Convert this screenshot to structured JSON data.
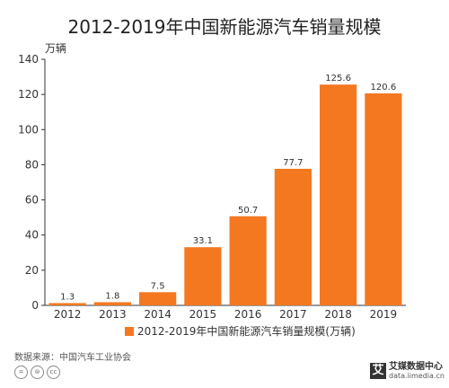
{
  "chart_data": {
    "type": "bar",
    "title": "2012-2019年中国新能源汽车销量规模",
    "ylabel": "万辆",
    "xlabel": "",
    "categories": [
      "2012",
      "2013",
      "2014",
      "2015",
      "2016",
      "2017",
      "2018",
      "2019"
    ],
    "series": [
      {
        "name": "2012-2019年中国新能源汽车销量规模(万辆)",
        "values": [
          1.3,
          1.8,
          7.5,
          33.1,
          50.7,
          77.7,
          125.6,
          120.6
        ],
        "labels": [
          "1.3",
          "1.8",
          "7.5",
          "33.1",
          "50.7",
          "77.7",
          "125.6",
          "120.6"
        ]
      }
    ],
    "ylim": [
      0,
      140
    ],
    "yticks": [
      0,
      20,
      40,
      60,
      80,
      100,
      120,
      140
    ],
    "grid": false,
    "legend_position": "bottom",
    "bar_color": "#F47820"
  },
  "footer": {
    "source": "数据来源：中国汽车工业协会",
    "cc_icons": [
      "=",
      "⊜",
      "cc"
    ]
  },
  "logo": {
    "name": "艾媒数据中心",
    "url": "data.iimedia.cn",
    "mark": "艾"
  }
}
